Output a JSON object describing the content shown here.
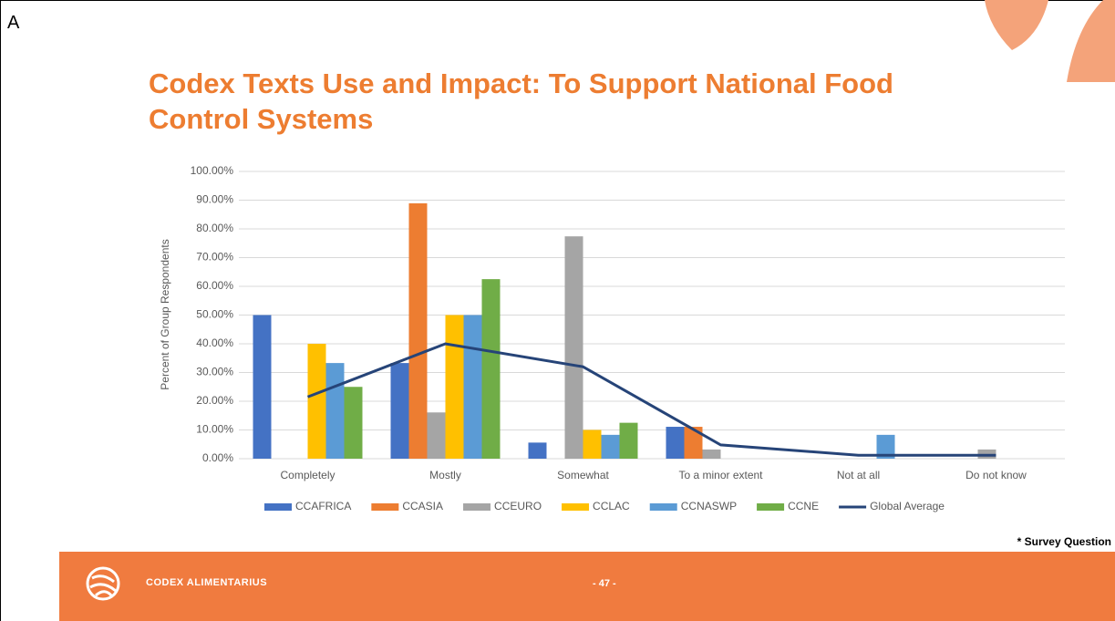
{
  "page": {
    "label": "A",
    "title": "Codex Texts Use and Impact: To Support National Food Control Systems",
    "note": "* Survey Question",
    "footer": {
      "brand": "CODEX ALIMENTARIUS",
      "page_number": "- 47 -"
    }
  },
  "chart_data": {
    "type": "bar",
    "y_label": "Percent of Group Respondents",
    "categories": [
      "Completely",
      "Mostly",
      "Somewhat",
      "To a minor extent",
      "Not at all",
      "Do not know"
    ],
    "series": [
      {
        "name": "CCAFRICA",
        "color": "#4472c4",
        "values": [
          50,
          33.3,
          5.6,
          11.1,
          0,
          0
        ]
      },
      {
        "name": "CCASIA",
        "color": "#ed7d31",
        "values": [
          0,
          88.9,
          0,
          11.1,
          0,
          0
        ]
      },
      {
        "name": "CCEURO",
        "color": "#a5a5a5",
        "values": [
          0,
          16.1,
          77.4,
          3.2,
          0,
          3.2
        ]
      },
      {
        "name": "CCLAC",
        "color": "#ffc000",
        "values": [
          40,
          50,
          10,
          0,
          0,
          0
        ]
      },
      {
        "name": "CCNASWP",
        "color": "#5b9bd5",
        "values": [
          33.3,
          50,
          8.3,
          0,
          8.3,
          0
        ]
      },
      {
        "name": "CCNE",
        "color": "#70ad47",
        "values": [
          25,
          62.5,
          12.5,
          0,
          0,
          0
        ]
      },
      {
        "name": "Global Average",
        "color": "#264478",
        "type": "line",
        "values": [
          21.5,
          40,
          32,
          4.8,
          1.2,
          1.2
        ]
      }
    ],
    "ylim": [
      0,
      100
    ],
    "yticks": [
      {
        "value": 0,
        "label": "0.00%"
      },
      {
        "value": 10,
        "label": "10.00%"
      },
      {
        "value": 20,
        "label": "20.00%"
      },
      {
        "value": 30,
        "label": "30.00%"
      },
      {
        "value": 40,
        "label": "40.00%"
      },
      {
        "value": 50,
        "label": "50.00%"
      },
      {
        "value": 60,
        "label": "60.00%"
      },
      {
        "value": 70,
        "label": "70.00%"
      },
      {
        "value": 80,
        "label": "80.00%"
      },
      {
        "value": 90,
        "label": "90.00%"
      },
      {
        "value": 100,
        "label": "100.00%"
      }
    ],
    "grid": true,
    "legend": "bottom"
  }
}
